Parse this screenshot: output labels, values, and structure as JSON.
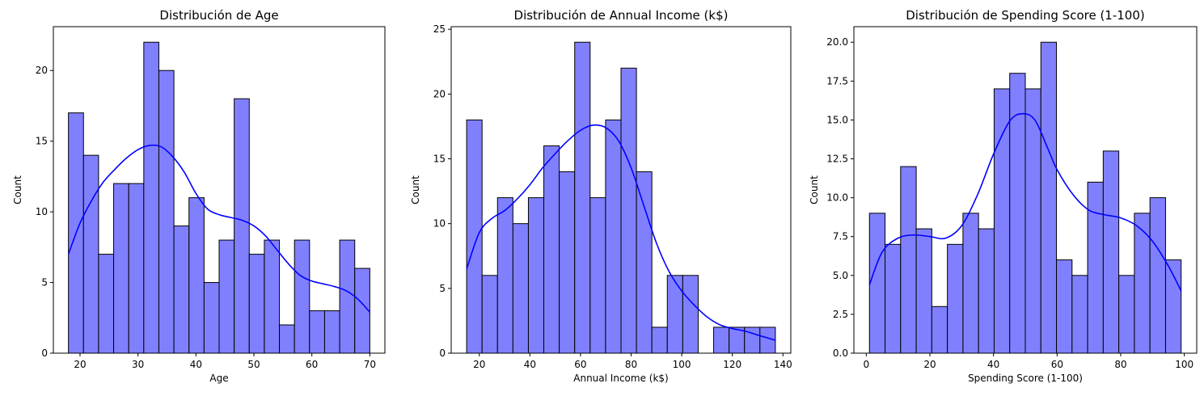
{
  "chart_data": [
    {
      "type": "bar",
      "subtype": "histogram_with_kde",
      "title": "Distribución de Age",
      "xlabel": "Age",
      "ylabel": "Count",
      "xlim": [
        15.4,
        72.6
      ],
      "ylim": [
        0,
        23.1
      ],
      "xticks": [
        20,
        30,
        40,
        50,
        60,
        70
      ],
      "yticks": [
        0,
        5,
        10,
        15,
        20
      ],
      "bar_color": "#8080ff",
      "edge_color": "#000000",
      "kde_color": "#0000ff",
      "bin_edges": [
        18,
        20.6,
        23.2,
        25.8,
        28.4,
        31,
        33.6,
        36.2,
        38.8,
        41.4,
        44,
        46.6,
        49.2,
        51.8,
        54.4,
        57,
        59.6,
        62.2,
        64.8,
        67.4,
        70
      ],
      "counts": [
        17,
        14,
        7,
        12,
        12,
        22,
        20,
        9,
        11,
        5,
        8,
        18,
        7,
        8,
        2,
        8,
        3,
        3,
        8,
        6
      ],
      "kde": {
        "x": [
          18,
          20,
          22,
          24,
          26,
          28,
          30,
          32,
          34,
          36,
          38,
          40,
          42,
          44,
          46,
          48,
          50,
          52,
          54,
          56,
          58,
          60,
          62,
          64,
          66,
          68,
          70
        ],
        "y": [
          7.0,
          9.2,
          10.8,
          12.1,
          13.0,
          13.8,
          14.4,
          14.7,
          14.6,
          13.9,
          12.8,
          11.3,
          10.2,
          9.8,
          9.6,
          9.4,
          9.0,
          8.3,
          7.3,
          6.3,
          5.5,
          5.1,
          4.9,
          4.7,
          4.4,
          3.8,
          2.9
        ]
      }
    },
    {
      "type": "bar",
      "subtype": "histogram_with_kde",
      "title": "Distribución de Annual Income (k$)",
      "xlabel": "Annual Income (k$)",
      "ylabel": "Count",
      "xlim": [
        8.9,
        143.1
      ],
      "ylim": [
        0,
        25.2
      ],
      "xticks": [
        20,
        40,
        60,
        80,
        100,
        120,
        140
      ],
      "yticks": [
        0,
        5,
        10,
        15,
        20,
        25
      ],
      "bar_color": "#8080ff",
      "edge_color": "#000000",
      "kde_color": "#0000ff",
      "bin_edges": [
        15,
        21.1,
        27.2,
        33.3,
        39.4,
        45.5,
        51.6,
        57.7,
        63.8,
        69.9,
        76,
        82.1,
        88.2,
        94.3,
        100.4,
        106.5,
        112.6,
        118.7,
        124.8,
        130.9,
        137
      ],
      "counts": [
        18,
        6,
        12,
        10,
        12,
        16,
        14,
        24,
        12,
        18,
        22,
        14,
        2,
        6,
        6,
        0,
        2,
        2,
        2,
        2
      ],
      "kde": {
        "x": [
          15,
          20,
          25,
          30,
          35,
          40,
          45,
          50,
          55,
          60,
          65,
          70,
          75,
          80,
          85,
          90,
          95,
          100,
          105,
          110,
          115,
          120,
          125,
          130,
          137
        ],
        "y": [
          6.5,
          9.3,
          10.4,
          11.0,
          11.9,
          13.0,
          14.3,
          15.4,
          16.4,
          17.2,
          17.6,
          17.4,
          16.4,
          14.3,
          11.4,
          8.5,
          6.3,
          4.8,
          3.7,
          2.8,
          2.2,
          1.9,
          1.7,
          1.4,
          1.0
        ]
      }
    },
    {
      "type": "bar",
      "subtype": "histogram_with_kde",
      "title": "Distribución de Spending Score (1-100)",
      "xlabel": "Spending Score (1-100)",
      "ylabel": "Count",
      "xlim": [
        -3.9,
        103.9
      ],
      "ylim": [
        0,
        21.0
      ],
      "xticks": [
        0,
        20,
        40,
        60,
        80,
        100
      ],
      "yticks": [
        0.0,
        2.5,
        5.0,
        7.5,
        10.0,
        12.5,
        15.0,
        17.5,
        20.0
      ],
      "ytick_labels": [
        "0.0",
        "2.5",
        "5.0",
        "7.5",
        "10.0",
        "12.5",
        "15.0",
        "17.5",
        "20.0"
      ],
      "bar_color": "#8080ff",
      "edge_color": "#000000",
      "kde_color": "#0000ff",
      "bin_edges": [
        1,
        5.9,
        10.8,
        15.7,
        20.6,
        25.5,
        30.4,
        35.3,
        40.2,
        45.1,
        50,
        54.9,
        59.8,
        64.7,
        69.6,
        74.5,
        79.4,
        84.3,
        89.2,
        94.1,
        99
      ],
      "counts": [
        9,
        7,
        12,
        8,
        3,
        7,
        9,
        8,
        17,
        18,
        17,
        20,
        6,
        5,
        11,
        13,
        5,
        9,
        10,
        6
      ],
      "kde": {
        "x": [
          1,
          5,
          10,
          15,
          20,
          25,
          30,
          35,
          40,
          45,
          49,
          53,
          57,
          60,
          65,
          70,
          75,
          80,
          85,
          90,
          95,
          99
        ],
        "y": [
          4.4,
          6.5,
          7.4,
          7.6,
          7.5,
          7.4,
          8.2,
          10.2,
          12.8,
          14.9,
          15.4,
          15.0,
          13.2,
          11.8,
          10.2,
          9.2,
          8.9,
          8.7,
          8.2,
          7.2,
          5.6,
          4.0
        ]
      }
    }
  ]
}
